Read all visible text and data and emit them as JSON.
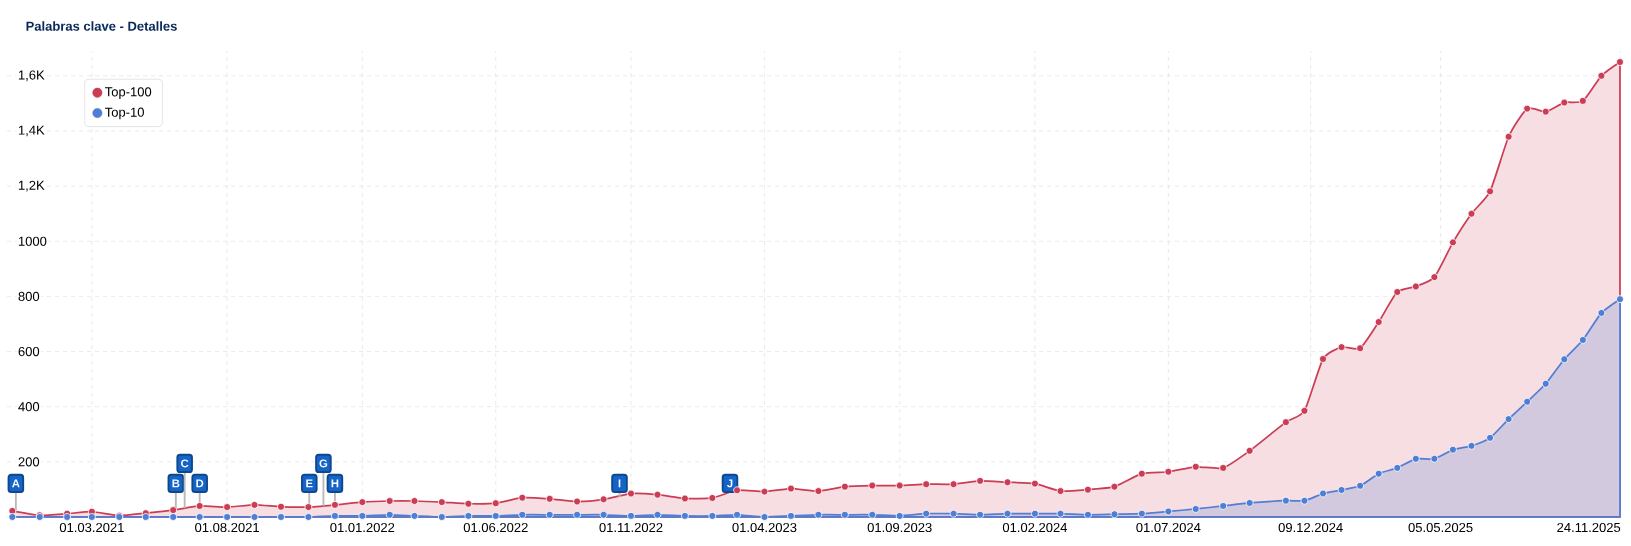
{
  "chart_data": {
    "type": "area",
    "title": "Palabras clave - Detalles",
    "x": [
      "2020-12-01",
      "2021-01-01",
      "2021-02-01",
      "2021-03-01",
      "2021-04-01",
      "2021-05-01",
      "2021-06-01",
      "2021-07-01",
      "2021-08-01",
      "2021-09-01",
      "2021-10-01",
      "2021-11-01",
      "2021-12-01",
      "2022-01-01",
      "2022-02-01",
      "2022-03-01",
      "2022-04-01",
      "2022-05-01",
      "2022-06-01",
      "2022-07-01",
      "2022-08-01",
      "2022-09-01",
      "2022-10-01",
      "2022-11-01",
      "2022-12-01",
      "2023-01-01",
      "2023-02-01",
      "2023-03-01",
      "2023-04-01",
      "2023-05-01",
      "2023-06-01",
      "2023-07-01",
      "2023-08-01",
      "2023-09-01",
      "2023-10-01",
      "2023-11-01",
      "2023-12-01",
      "2024-01-01",
      "2024-02-01",
      "2024-03-01",
      "2024-04-01",
      "2024-05-01",
      "2024-06-01",
      "2024-07-01",
      "2024-08-01",
      "2024-09-01",
      "2024-10-01",
      "2024-11-11",
      "2024-12-02",
      "2024-12-23",
      "2025-01-13",
      "2025-02-03",
      "2025-02-24",
      "2025-03-17",
      "2025-04-07",
      "2025-04-28",
      "2025-05-19",
      "2025-06-09",
      "2025-06-30",
      "2025-07-21",
      "2025-08-11",
      "2025-09-01",
      "2025-09-22",
      "2025-10-13",
      "2025-11-03",
      "2025-11-24"
    ],
    "series": [
      {
        "name": "Top-100",
        "color": "#cc3d55",
        "values": [
          22,
          6,
          12,
          19,
          5,
          14,
          25,
          40,
          36,
          44,
          37,
          36,
          44,
          54,
          58,
          58,
          54,
          48,
          50,
          70,
          66,
          56,
          64,
          85,
          81,
          67,
          69,
          97,
          92,
          103,
          94,
          110,
          114,
          114,
          119,
          119,
          131,
          126,
          121,
          94,
          99,
          110,
          157,
          164,
          182,
          178,
          240,
          344,
          385,
          573,
          616,
          612,
          707,
          816,
          836,
          870,
          996,
          1100,
          1181,
          1379,
          1481,
          1470,
          1503,
          1509,
          1600,
          1650
        ]
      },
      {
        "name": "Top-10",
        "color": "#4f7fd4",
        "values": [
          0,
          0,
          0,
          0,
          0,
          0,
          0,
          0,
          0,
          0,
          0,
          0,
          4,
          4,
          8,
          4,
          0,
          4,
          4,
          8,
          8,
          8,
          8,
          4,
          8,
          4,
          4,
          8,
          0,
          4,
          8,
          8,
          8,
          4,
          12,
          12,
          8,
          12,
          12,
          12,
          8,
          10,
          12,
          20,
          29,
          40,
          51,
          59,
          59,
          85,
          98,
          113,
          157,
          178,
          211,
          211,
          244,
          258,
          287,
          355,
          418,
          483,
          572,
          642,
          740,
          790
        ]
      }
    ],
    "xlim": [
      "2020-11-25",
      "2025-11-24"
    ],
    "xticks": [
      {
        "value": "2021-03-01",
        "label": "01.03.2021"
      },
      {
        "value": "2021-08-01",
        "label": "01.08.2021"
      },
      {
        "value": "2022-01-01",
        "label": "01.01.2022"
      },
      {
        "value": "2022-06-01",
        "label": "01.06.2022"
      },
      {
        "value": "2022-11-01",
        "label": "01.11.2022"
      },
      {
        "value": "2023-04-01",
        "label": "01.04.2023"
      },
      {
        "value": "2023-09-01",
        "label": "01.09.2023"
      },
      {
        "value": "2024-02-01",
        "label": "01.02.2024"
      },
      {
        "value": "2024-07-01",
        "label": "01.07.2024"
      },
      {
        "value": "2024-12-09",
        "label": "09.12.2024"
      },
      {
        "value": "2025-05-05",
        "label": "05.05.2025"
      },
      {
        "value": "2025-11-24",
        "label": "24.11.2025"
      }
    ],
    "ylim": [
      0,
      1690
    ],
    "yticks": [
      200,
      400,
      600,
      800,
      1000,
      {
        "value": 1200,
        "label": "1,2K"
      },
      {
        "value": 1400,
        "label": "1,4K"
      },
      {
        "value": 1600,
        "label": "1,6K"
      }
    ],
    "annotations": [
      {
        "text": "A",
        "x": "2020-12-05",
        "y": 20
      },
      {
        "text": "B",
        "x": "2021-06-04",
        "y": 25
      },
      {
        "text": "C",
        "x": "2021-06-14",
        "y": 32
      },
      {
        "text": "D",
        "x": "2021-07-01",
        "y": 40
      },
      {
        "text": "E",
        "x": "2021-11-02",
        "y": 36
      },
      {
        "text": "G",
        "x": "2021-11-18",
        "y": 40
      },
      {
        "text": "H",
        "x": "2021-12-01",
        "y": 44
      },
      {
        "text": "I",
        "x": "2022-10-19",
        "y": 72
      },
      {
        "text": "J",
        "x": "2023-02-21",
        "y": 88
      }
    ],
    "grid": true,
    "legend": "top left",
    "marker": "circle"
  }
}
